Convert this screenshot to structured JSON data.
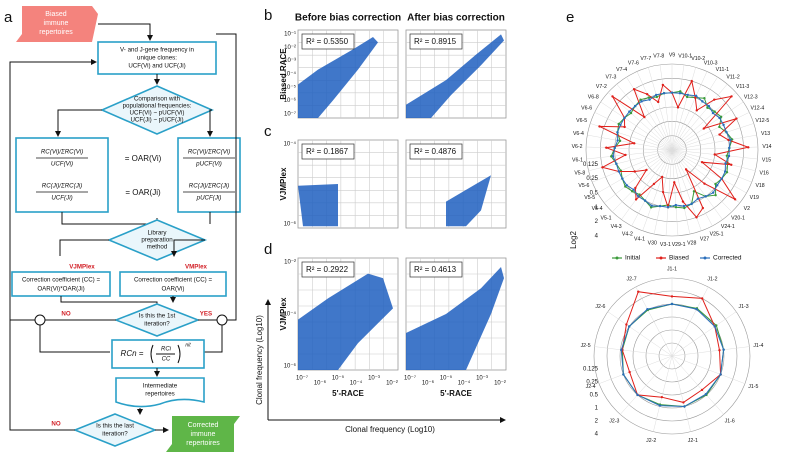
{
  "panels": {
    "a": "a",
    "b": "b",
    "c": "c",
    "d": "d",
    "e": "e"
  },
  "flowchart": {
    "input": [
      "Biased",
      "immune",
      "repertoires"
    ],
    "step1": [
      "V- and J-gene frequency in",
      "unique clones:",
      "UCF(Vi) and UCF(Ji)"
    ],
    "step2": [
      "Comparison with",
      "populational frequencies:",
      "UCF(Vi) ~ pUCF(Vi)",
      "UCF(Ji) ~ pUCF(Ji)"
    ],
    "yes": "YES",
    "no": "NO",
    "left": [
      [
        "RC(Vi)/ΣRC(Vi)",
        "UCF(Vi)"
      ],
      [
        "RC(Ji)/ΣRC(Ji)",
        "UCF(Ji)"
      ]
    ],
    "right": [
      [
        "RC(Vi)/ΣRC(Vi)",
        "pUCF(Vi)"
      ],
      [
        "RC(Ji)/ΣRC(Ji)",
        "pUCF(Ji)"
      ]
    ],
    "oar": [
      "= OAR(Vi)",
      "= OAR(Ji)"
    ],
    "step3": [
      "Library",
      "preparation",
      "method"
    ],
    "vjmplex": "VJMPlex",
    "vmplex": "VMPlex",
    "cc_left": [
      "Correction coefficient (CC) =",
      "OAR(Vi)*OAR(Ji)"
    ],
    "cc_right": [
      "Correction coefficient (CC) =",
      "OAR(Vi)"
    ],
    "q1": [
      "Is this the 1st",
      "iteration?"
    ],
    "formula": {
      "lhs": "RCn =",
      "num": "RCi",
      "den": "CC",
      "exp": "nit"
    },
    "intermediate": [
      "Intermediate",
      "repertoires"
    ],
    "q2": [
      "Is this the last",
      "iteration?"
    ],
    "output": [
      "Corrected",
      "immune",
      "repertoires"
    ]
  },
  "scatter": {
    "col_titles": [
      "Before bias correction",
      "After bias correction"
    ],
    "rows": [
      {
        "ylabel": "Biased RACE",
        "r2": [
          "R² = 0.5350",
          "R² = 0.8915"
        ],
        "yticks": [
          "10⁻¹",
          "10⁻²",
          "10⁻³",
          "10⁻⁴",
          "10⁻⁵",
          "10⁻⁶",
          "10⁻⁷"
        ]
      },
      {
        "ylabel": "VJMPlex",
        "r2": [
          "R² = 0.1867",
          "R² = 0.4876"
        ],
        "yticks": [
          "10⁻⁴",
          "10⁻⁶"
        ]
      },
      {
        "ylabel": "VJMPlex",
        "r2": [
          "R² = 0.2922",
          "R² = 0.4613"
        ],
        "yticks": [
          "10⁻²",
          "10⁻⁴",
          "10⁻⁶"
        ]
      }
    ],
    "xticks": [
      "10⁻⁷",
      "10⁻⁶",
      "10⁻⁵",
      "10⁻⁴",
      "10⁻³",
      "10⁻²"
    ],
    "xlabel": "5'-RACE",
    "axis_label": "Clonal frequency (Log10)"
  },
  "radar": {
    "rlim": [
      0.0625,
      4
    ],
    "rticks": [
      0.125,
      0.25,
      0.5,
      1,
      2,
      4
    ],
    "rlabel": "Log2",
    "series": [
      {
        "name": "Initial",
        "color": "#3a9a3a"
      },
      {
        "name": "Biased",
        "color": "#e0201b"
      },
      {
        "name": "Corrected",
        "color": "#2a6ebb"
      }
    ],
    "v": {
      "labels": [
        "V9",
        "V10-1",
        "V10-2",
        "V10-3",
        "V11-1",
        "V11-2",
        "V11-3",
        "V12-3",
        "V12-4",
        "V12-5",
        "V13",
        "V14",
        "V15",
        "V16",
        "V18",
        "V19",
        "V2",
        "V20-1",
        "V24-1",
        "V25-1",
        "V27",
        "V28",
        "V29-1",
        "V3-1",
        "V30",
        "V4-1",
        "V4-2",
        "V4-3",
        "V5-1",
        "V5-4",
        "V5-5",
        "V5-6",
        "V5-8",
        "V6-1",
        "V6-2",
        "V6-4",
        "V6-5",
        "V6-6",
        "V6-8",
        "V7-2",
        "V7-3",
        "V7-4",
        "V7-6",
        "V7-7",
        "V7-8"
      ],
      "values": [
        [
          1,
          1.1,
          0.9,
          1,
          1.2,
          0.9,
          1,
          1.1,
          0.8,
          1,
          1.2,
          1,
          0.9,
          1,
          1.1,
          1,
          0.9,
          1.3,
          1,
          0.6,
          1,
          1.1,
          1,
          0.9,
          1,
          1.2,
          1,
          0.9,
          1,
          1.1,
          1,
          0.9,
          1,
          1.2,
          1,
          0.8,
          1,
          1.1,
          1,
          0.9,
          1,
          1.1,
          1,
          0.9,
          1
        ],
        [
          1,
          0.5,
          2,
          1,
          0.6,
          1.5,
          3,
          0.4,
          2,
          0.7,
          1,
          2.5,
          0.5,
          1.2,
          0.3,
          1,
          3,
          0.6,
          0.2,
          1.5,
          2,
          0.8,
          0.3,
          1,
          0.5,
          0.25,
          0.4,
          1.2,
          0.8,
          0.3,
          0.5,
          1,
          2,
          0.6,
          1.5,
          0.4,
          2.5,
          0.8,
          1,
          3,
          0.5,
          2,
          1.2,
          0.7,
          1.5
        ],
        [
          1,
          1,
          1,
          1.1,
          1,
          1,
          0.9,
          1,
          1,
          1,
          1.1,
          1,
          1,
          0.9,
          1,
          1,
          1,
          1.1,
          1,
          0.9,
          1,
          1,
          0.9,
          1,
          1,
          1.1,
          1,
          1,
          0.9,
          1,
          1,
          1,
          1,
          1.1,
          1,
          0.9,
          1,
          1,
          1,
          1,
          1,
          1,
          0.9,
          1,
          1
        ]
      ]
    },
    "j": {
      "labels": [
        "J1-1",
        "J1-2",
        "J1-3",
        "J1-4",
        "J1-5",
        "J1-6",
        "J2-1",
        "J2-2",
        "J2-3",
        "J2-4",
        "J2-5",
        "J2-6",
        "J2-7"
      ],
      "values": [
        [
          1,
          1.1,
          1.1,
          1,
          1,
          1,
          1,
          0.9,
          1,
          1,
          0.9,
          1,
          1
        ],
        [
          1.5,
          2,
          1,
          0.8,
          1,
          0.7,
          0.8,
          0.6,
          1,
          0.7,
          0.9,
          1.2,
          3
        ],
        [
          1,
          1.05,
          1,
          1,
          1,
          0.95,
          1,
          0.95,
          1,
          1,
          0.95,
          1,
          1.05
        ]
      ]
    }
  }
}
